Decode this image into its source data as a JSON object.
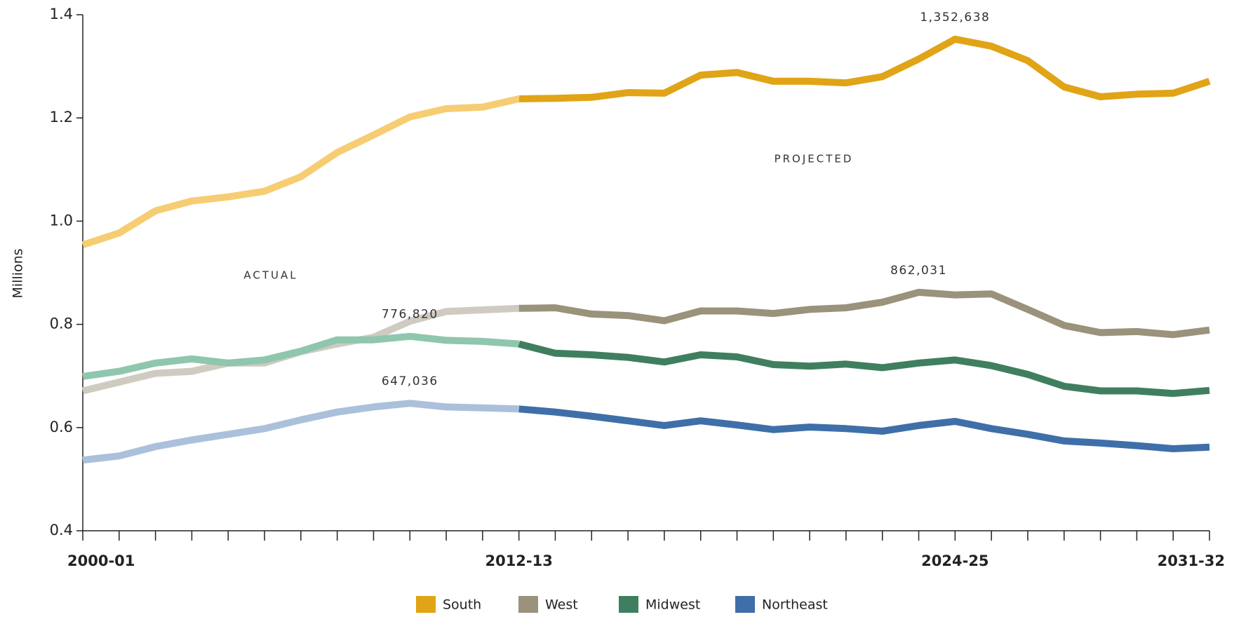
{
  "chart_data": {
    "type": "line",
    "y_label": "Millions",
    "categories": [
      "2000-01",
      null,
      null,
      null,
      null,
      null,
      null,
      null,
      null,
      null,
      null,
      null,
      "2012-13",
      null,
      null,
      null,
      null,
      null,
      null,
      null,
      null,
      null,
      null,
      null,
      "2024-25",
      null,
      null,
      null,
      null,
      null,
      null,
      "2031-32"
    ],
    "projected_from": "2012-13",
    "annotations": [
      "ACTUAL",
      "PROJECTED"
    ],
    "ylim": [
      0.4,
      1.4
    ],
    "yticks": [
      0.4,
      0.6,
      0.8,
      {
        "value": 1,
        "label": "1.0"
      },
      1.2,
      1.4
    ],
    "series": [
      {
        "name": "South",
        "color": "#e0a416",
        "actual_color": "#f6cd72",
        "values": [
          0.954,
          0.977,
          1.02,
          1.039,
          1.047,
          1.058,
          1.086,
          1.133,
          1.167,
          1.202,
          1.218,
          1.221,
          1.237,
          1.238,
          1.24,
          1.249,
          1.248,
          1.283,
          1.288,
          1.271,
          1.271,
          1.268,
          1.28,
          1.314,
          1.352638,
          1.339,
          1.311,
          1.26,
          1.241,
          1.246,
          1.248,
          1.271
        ],
        "value_labels": [
          null,
          null,
          null,
          null,
          null,
          null,
          null,
          null,
          null,
          null,
          null,
          null,
          null,
          null,
          null,
          null,
          null,
          null,
          null,
          null,
          null,
          null,
          null,
          null,
          "1,352,638",
          null,
          null,
          null,
          null,
          null,
          null,
          null
        ]
      },
      {
        "name": "West",
        "color": "#9b927c",
        "actual_color": "#cfcbc0",
        "values": [
          0.671,
          0.688,
          0.705,
          0.709,
          0.725,
          0.725,
          0.747,
          0.762,
          0.775,
          0.806,
          0.825,
          0.828,
          0.831,
          0.832,
          0.82,
          0.817,
          0.807,
          0.826,
          0.826,
          0.821,
          0.829,
          0.832,
          0.843,
          0.862031,
          0.857,
          0.859,
          0.829,
          0.798,
          0.784,
          0.786,
          0.78,
          0.789
        ],
        "value_labels": [
          null,
          null,
          null,
          null,
          null,
          null,
          null,
          null,
          null,
          null,
          null,
          null,
          null,
          null,
          null,
          null,
          null,
          null,
          null,
          null,
          null,
          null,
          null,
          "862,031",
          null,
          null,
          null,
          null,
          null,
          null,
          null,
          null
        ]
      },
      {
        "name": "Midwest",
        "color": "#3f7f5f",
        "actual_color": "#8fc6ae",
        "values": [
          0.699,
          0.709,
          0.725,
          0.733,
          0.725,
          0.731,
          0.748,
          0.77,
          0.77,
          0.77682,
          0.769,
          0.767,
          0.762,
          0.744,
          0.741,
          0.736,
          0.727,
          0.741,
          0.737,
          0.722,
          0.719,
          0.723,
          0.716,
          0.725,
          0.731,
          0.72,
          0.703,
          0.68,
          0.671,
          0.671,
          0.666,
          0.672
        ],
        "value_labels": [
          null,
          null,
          null,
          null,
          null,
          null,
          null,
          null,
          null,
          "776,820",
          null,
          null,
          null,
          null,
          null,
          null,
          null,
          null,
          null,
          null,
          null,
          null,
          null,
          null,
          null,
          null,
          null,
          null,
          null,
          null,
          null,
          null
        ]
      },
      {
        "name": "Northeast",
        "color": "#3f6fa8",
        "actual_color": "#abc0da",
        "values": [
          0.537,
          0.545,
          0.563,
          0.576,
          0.587,
          0.598,
          0.615,
          0.63,
          0.64,
          0.647036,
          0.64,
          0.638,
          0.636,
          0.63,
          0.622,
          0.613,
          0.604,
          0.613,
          0.605,
          0.596,
          0.601,
          0.598,
          0.593,
          0.604,
          0.612,
          0.598,
          0.587,
          0.574,
          0.57,
          0.565,
          0.559,
          0.562
        ],
        "value_labels": [
          null,
          null,
          null,
          null,
          null,
          null,
          null,
          null,
          null,
          "647,036",
          null,
          null,
          null,
          null,
          null,
          null,
          null,
          null,
          null,
          null,
          null,
          null,
          null,
          null,
          null,
          null,
          null,
          null,
          null,
          null,
          null,
          null
        ]
      }
    ]
  }
}
